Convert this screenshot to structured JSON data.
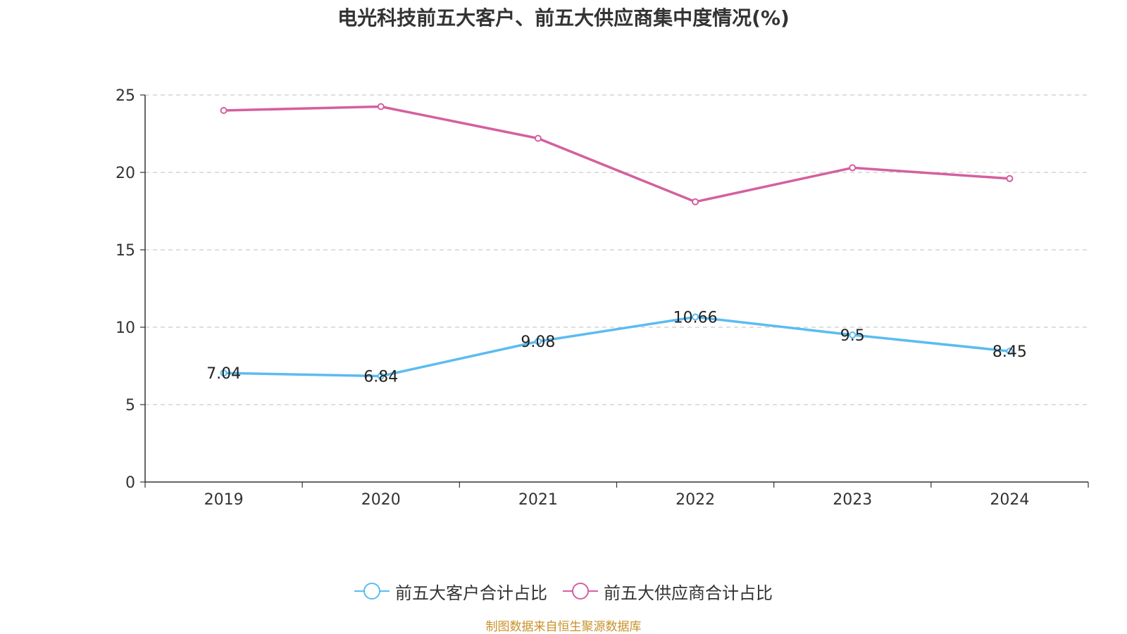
{
  "chart_data": {
    "type": "line",
    "title": "电光科技前五大客户、前五大供应商集中度情况(%)",
    "xlabel": "",
    "ylabel": "",
    "categories": [
      "2019",
      "2020",
      "2021",
      "2022",
      "2023",
      "2024"
    ],
    "ylim": [
      0,
      25
    ],
    "yticks": [
      0,
      5,
      10,
      15,
      20,
      25
    ],
    "grid": true,
    "legend_position": "bottom",
    "series": [
      {
        "name": "前五大客户合计占比",
        "color": "#5bbcef",
        "values": [
          7.04,
          6.84,
          9.08,
          10.66,
          9.5,
          8.45
        ],
        "data_labels": [
          "7.04",
          "6.84",
          "9.08",
          "10.66",
          "9.5",
          "8.45"
        ]
      },
      {
        "name": "前五大供应商合计占比",
        "color": "#d4609f",
        "values": [
          24.0,
          24.25,
          22.2,
          18.1,
          20.3,
          19.6
        ]
      }
    ]
  },
  "source_note": "制图数据来自恒生聚源数据库"
}
